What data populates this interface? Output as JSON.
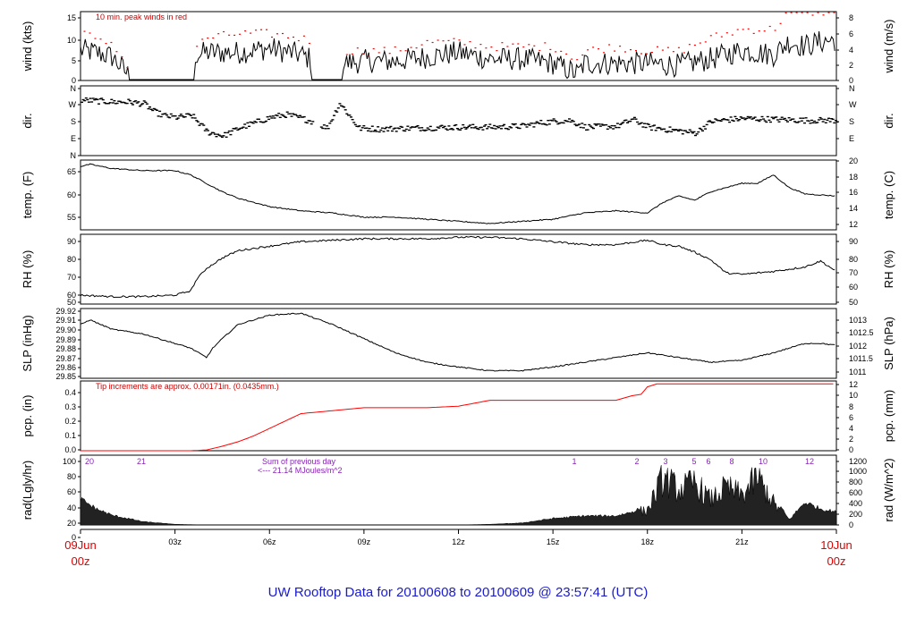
{
  "title": "UW Rooftop Data for 20100608  to  20100609 @ 23:57:41  (UTC)",
  "start_label": {
    "date": "09Jun",
    "hour": "00z"
  },
  "end_label": {
    "date": "10Jun",
    "hour": "00z"
  },
  "x_ticks": [
    "03z",
    "06z",
    "09z",
    "12z",
    "15z",
    "18z",
    "21z"
  ],
  "colors": {
    "trace": "#000000",
    "peak": "#ff0000",
    "pcp": "#ff0000",
    "note": "#d00000",
    "purple": "#8a22b8",
    "title": "#1a1ad0",
    "date": "#e00000"
  },
  "chart_data": [
    {
      "type": "line",
      "id": "wind",
      "ylabel_left": "wind (kts)",
      "ylabel_right": "wind (m/s)",
      "left_ticks": [
        "15",
        "10",
        "5",
        "0"
      ],
      "right_ticks": [
        "8",
        "6",
        "4",
        "2",
        "0"
      ],
      "ylim": [
        0,
        16
      ],
      "note": "10 min. peak winds in red",
      "x": [
        0,
        0.5,
        1,
        1.5,
        1.55,
        3.6,
        3.65,
        4,
        5,
        6,
        7,
        7.3,
        7.35,
        8.3,
        8.35,
        9,
        10,
        11,
        12,
        13,
        14,
        15,
        15.8,
        16,
        17,
        18,
        19,
        20,
        21,
        22,
        22.5,
        23,
        23.5,
        24
      ],
      "series": [
        {
          "values": [
            7,
            6.5,
            5.5,
            1.5,
            0.2,
            0.2,
            6,
            6.5,
            6.5,
            7.5,
            6,
            5,
            0.2,
            0.2,
            4,
            4.5,
            4.5,
            5.5,
            6.5,
            5,
            5,
            4,
            1.5,
            4,
            4,
            4,
            3.5,
            5,
            7,
            6,
            9,
            8,
            9,
            9.5
          ]
        },
        {
          "name": "10 min. peak winds in red",
          "values": [
            12,
            9,
            9,
            3,
            0.5,
            0.5,
            8,
            10,
            11,
            11,
            10,
            9,
            0.5,
            0.5,
            7,
            7,
            7,
            9,
            9,
            8,
            8,
            8,
            5,
            7,
            8,
            7,
            7,
            10,
            12,
            12,
            17,
            16,
            16,
            17
          ]
        }
      ]
    },
    {
      "type": "scatter",
      "id": "dir",
      "ylabel_left": "dir.",
      "ylabel_right": "dir.",
      "left_ticks": [
        "N",
        "W",
        "S",
        "E",
        "N"
      ],
      "right_ticks": [
        "N",
        "W",
        "S",
        "E"
      ],
      "ylim": [
        0,
        360
      ],
      "x": [
        0,
        0.5,
        1,
        1.5,
        2,
        2.3,
        2.6,
        3,
        3.5,
        4,
        4.5,
        5,
        6,
        6.5,
        7,
        7.3,
        7.8,
        8.2,
        8.8,
        9.5,
        10.5,
        12,
        13,
        14,
        14.5,
        15,
        15.5,
        16,
        17,
        17.5,
        18,
        19,
        19.5,
        20,
        21,
        22,
        23,
        24
      ],
      "values": [
        290,
        285,
        280,
        280,
        270,
        230,
        210,
        200,
        210,
        125,
        105,
        145,
        200,
        215,
        195,
        180,
        145,
        275,
        145,
        140,
        145,
        150,
        150,
        155,
        170,
        180,
        185,
        150,
        155,
        190,
        150,
        130,
        120,
        180,
        195,
        190,
        185,
        185
      ]
    },
    {
      "type": "line",
      "id": "temp",
      "ylabel_left": "temp. (F)",
      "ylabel_right": "temp. (C)",
      "left_ticks": [
        "65",
        "60",
        "55"
      ],
      "right_ticks": [
        "20",
        "18",
        "16",
        "14",
        "12"
      ],
      "ylim": [
        51.5,
        68
      ],
      "x": [
        0,
        0.3,
        1,
        2,
        3,
        3.5,
        4,
        4.5,
        5,
        6,
        7,
        8,
        9,
        10,
        11,
        12,
        13,
        14,
        15,
        16,
        17,
        18,
        18.5,
        19,
        19.5,
        20,
        21,
        21.5,
        22,
        22.5,
        23,
        24
      ],
      "values": [
        66.5,
        67,
        66,
        65.5,
        65.5,
        64.5,
        62.5,
        60.5,
        59,
        57,
        56,
        55.5,
        54.5,
        54.5,
        54,
        53.5,
        53,
        53.5,
        54,
        55.5,
        56,
        55.5,
        58,
        59.5,
        58.5,
        60.5,
        62.5,
        62.5,
        64.5,
        61.5,
        60,
        59.5
      ]
    },
    {
      "type": "line",
      "id": "rh",
      "ylabel_left": "RH (%)",
      "ylabel_right": "RH (%)",
      "left_ticks": [
        "90",
        "80",
        "70",
        "60",
        "50"
      ],
      "right_ticks": [
        "90",
        "80",
        "70",
        "60",
        "50"
      ],
      "ylim": [
        48,
        95
      ],
      "x": [
        0,
        1,
        2,
        3,
        3.5,
        3.7,
        4,
        4.5,
        5,
        6,
        7,
        8,
        9,
        10,
        11,
        12,
        13,
        14,
        15,
        16,
        17,
        18,
        18.5,
        19,
        19.5,
        20,
        20.5,
        21,
        22,
        23,
        23.5,
        24
      ],
      "values": [
        54,
        53,
        53,
        54,
        57,
        65,
        72,
        79,
        84,
        87,
        90,
        91,
        92,
        92,
        92,
        93,
        93,
        92,
        90,
        88,
        88,
        91,
        88,
        87,
        83,
        78,
        69,
        68,
        70,
        73,
        77,
        70
      ]
    },
    {
      "type": "line",
      "id": "slp",
      "ylabel_left": "SLP (inHg)",
      "ylabel_right": "SLP (hPa)",
      "left_ticks": [
        "29.92",
        "29.91",
        "29.90",
        "29.89",
        "29.88",
        "29.87",
        "29.86",
        "29.85"
      ],
      "right_ticks": [
        "1013",
        "1012.5",
        "1012",
        "1011.5",
        "1011"
      ],
      "ylim": [
        29.848,
        29.922
      ],
      "x": [
        0,
        0.3,
        1,
        2,
        3,
        3.5,
        4,
        4.2,
        4.5,
        5,
        5.5,
        6,
        7,
        8,
        9,
        10,
        11,
        12,
        13,
        14,
        15,
        16,
        17,
        18,
        19,
        20,
        21,
        22,
        23,
        23.5,
        24
      ],
      "values": [
        29.905,
        29.91,
        29.9,
        29.895,
        29.885,
        29.88,
        29.87,
        29.88,
        29.89,
        29.905,
        29.91,
        29.915,
        29.917,
        29.905,
        29.89,
        29.875,
        29.865,
        29.86,
        29.856,
        29.856,
        29.86,
        29.865,
        29.87,
        29.875,
        29.87,
        29.865,
        29.867,
        29.875,
        29.885,
        29.885,
        29.883
      ]
    },
    {
      "type": "line",
      "id": "pcp",
      "ylabel_left": "pcp. (in)",
      "ylabel_right": "pcp. (mm)",
      "left_ticks": [
        "0.4",
        "0.3",
        "0.2",
        "0.1",
        "0.0"
      ],
      "right_ticks": [
        "12",
        "10",
        "8",
        "6",
        "4",
        "2",
        "0"
      ],
      "ylim": [
        0,
        0.47
      ],
      "note": "Tip increments are approx. 0.00171in. (0.0435mm.)",
      "x": [
        0,
        3,
        3.5,
        4,
        4.5,
        5,
        5.5,
        6,
        6.5,
        7,
        8,
        9,
        10,
        11,
        12,
        12.5,
        13,
        14,
        15,
        16,
        17,
        17.5,
        17.8,
        18,
        18.3,
        19,
        20,
        21,
        22,
        23,
        24
      ],
      "values": [
        0,
        0,
        0,
        0.005,
        0.03,
        0.06,
        0.1,
        0.15,
        0.2,
        0.25,
        0.27,
        0.29,
        0.29,
        0.29,
        0.3,
        0.32,
        0.34,
        0.34,
        0.34,
        0.34,
        0.34,
        0.37,
        0.38,
        0.43,
        0.45,
        0.45,
        0.45,
        0.45,
        0.45,
        0.45,
        0.45
      ]
    },
    {
      "type": "area",
      "id": "rad",
      "ylabel_left": "rad(Lgly/hr)",
      "ylabel_right": "rad (W/m^2)",
      "left_ticks": [
        "100",
        "80",
        "60",
        "40",
        "20",
        "0"
      ],
      "right_ticks": [
        "1200",
        "1000",
        "800",
        "600",
        "400",
        "200",
        "0"
      ],
      "ylim": [
        0,
        105
      ],
      "x": [
        0,
        0.5,
        1,
        2,
        3,
        4,
        5,
        6,
        7,
        8,
        9,
        10,
        11,
        12,
        13,
        14,
        15,
        16,
        17,
        17.5,
        18,
        18.5,
        19,
        19.5,
        20,
        20.5,
        21,
        21.5,
        22,
        22.5,
        23,
        23.5,
        24
      ],
      "values": [
        40,
        25,
        15,
        5,
        1,
        0,
        0,
        0,
        0,
        0,
        0,
        0,
        0,
        0,
        1,
        3,
        10,
        14,
        14,
        20,
        30,
        95,
        70,
        85,
        50,
        75,
        60,
        95,
        45,
        8,
        35,
        25,
        20
      ],
      "hour_markers": [
        "20",
        "21",
        "1",
        "2",
        "3",
        "5",
        "6",
        "8",
        "10",
        "12"
      ],
      "sum_note": "Sum of previous day",
      "sum_value": "<--- 21.14 MJoules/m^2"
    }
  ]
}
